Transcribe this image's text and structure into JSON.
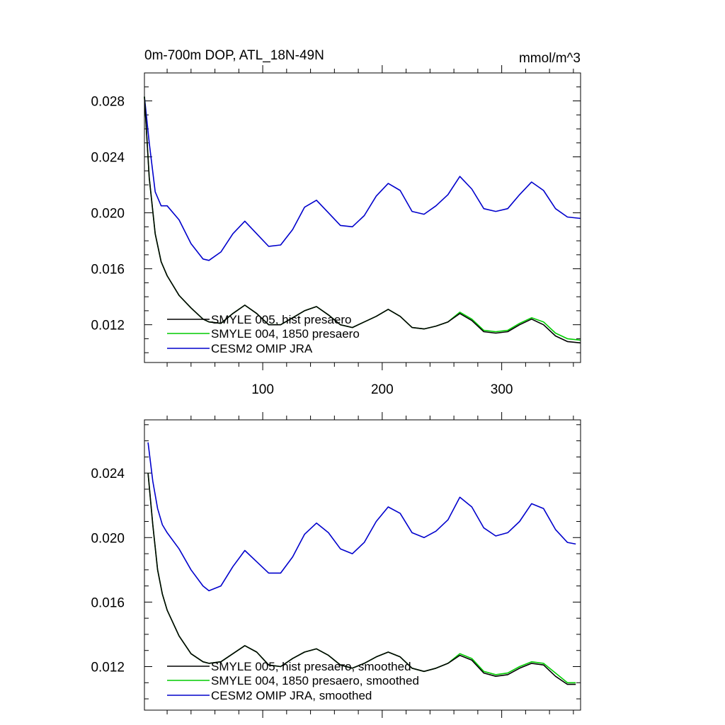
{
  "chart_data": [
    {
      "type": "line",
      "title": "0m-700m DOP, ATL_18N-49N",
      "units": "mmol/m^3",
      "xlabel": "",
      "ylabel": "",
      "xlim": [
        1,
        366
      ],
      "ylim": [
        0.0093,
        0.03
      ],
      "x_ticks": [
        100,
        200,
        300
      ],
      "x_tick_labels": [
        "100",
        "200",
        "300"
      ],
      "y_ticks": [
        0.012,
        0.016,
        0.02,
        0.024,
        0.028
      ],
      "y_tick_labels": [
        "0.012",
        "0.016",
        "0.020",
        "0.024",
        "0.028"
      ],
      "legend_position": "bottom-left",
      "series": [
        {
          "name": "SMYLE 005, hist presaero",
          "color": "#000000",
          "x": [
            1,
            5,
            10,
            15,
            20,
            30,
            40,
            50,
            55,
            65,
            75,
            85,
            95,
            105,
            115,
            125,
            135,
            145,
            155,
            165,
            175,
            185,
            195,
            205,
            215,
            225,
            235,
            245,
            255,
            265,
            275,
            285,
            295,
            305,
            315,
            325,
            335,
            345,
            355,
            366
          ],
          "y": [
            0.0283,
            0.0225,
            0.0185,
            0.0165,
            0.0155,
            0.0141,
            0.0132,
            0.0124,
            0.0122,
            0.0121,
            0.0128,
            0.0134,
            0.0128,
            0.012,
            0.012,
            0.0125,
            0.013,
            0.0133,
            0.0127,
            0.012,
            0.0118,
            0.0122,
            0.0126,
            0.0131,
            0.0126,
            0.0118,
            0.0117,
            0.0119,
            0.0122,
            0.0128,
            0.0123,
            0.0115,
            0.0114,
            0.0115,
            0.012,
            0.0124,
            0.012,
            0.0112,
            0.0108,
            0.0107
          ]
        },
        {
          "name": "SMYLE 004, 1850 presaero",
          "color": "#00cc00",
          "x": [
            1,
            5,
            10,
            15,
            20,
            30,
            40,
            50,
            55,
            65,
            75,
            85,
            95,
            105,
            115,
            125,
            135,
            145,
            155,
            165,
            175,
            185,
            195,
            205,
            215,
            225,
            235,
            245,
            255,
            265,
            275,
            285,
            295,
            305,
            315,
            325,
            335,
            345,
            355,
            366
          ],
          "y": [
            0.0283,
            0.0225,
            0.0185,
            0.0165,
            0.0155,
            0.0141,
            0.0132,
            0.0124,
            0.0122,
            0.0121,
            0.0128,
            0.0134,
            0.0128,
            0.012,
            0.012,
            0.0125,
            0.013,
            0.0133,
            0.0127,
            0.012,
            0.0118,
            0.0122,
            0.0126,
            0.0131,
            0.0126,
            0.0118,
            0.0117,
            0.0119,
            0.0122,
            0.0129,
            0.0124,
            0.0116,
            0.0115,
            0.0116,
            0.0121,
            0.0125,
            0.0122,
            0.0114,
            0.011,
            0.0109
          ]
        },
        {
          "name": "CESM2 OMIP JRA",
          "color": "#0000cc",
          "x": [
            1,
            5,
            10,
            15,
            20,
            30,
            40,
            50,
            55,
            65,
            75,
            85,
            95,
            105,
            115,
            125,
            135,
            145,
            155,
            165,
            175,
            185,
            195,
            205,
            215,
            225,
            235,
            245,
            255,
            265,
            275,
            285,
            295,
            305,
            315,
            325,
            335,
            345,
            355,
            366
          ],
          "y": [
            0.0283,
            0.025,
            0.0215,
            0.0205,
            0.0205,
            0.0195,
            0.0178,
            0.0167,
            0.0166,
            0.0172,
            0.0185,
            0.0194,
            0.0185,
            0.0176,
            0.0177,
            0.0188,
            0.0204,
            0.0209,
            0.02,
            0.0191,
            0.019,
            0.0198,
            0.0212,
            0.0221,
            0.0216,
            0.0201,
            0.0199,
            0.0205,
            0.0213,
            0.0226,
            0.0217,
            0.0203,
            0.0201,
            0.0203,
            0.0213,
            0.0222,
            0.0216,
            0.0203,
            0.0197,
            0.0196
          ]
        }
      ]
    },
    {
      "type": "line",
      "title": "",
      "xlabel": "",
      "ylabel": "",
      "xlim": [
        1,
        366
      ],
      "ylim": [
        0.0093,
        0.0273
      ],
      "x_ticks": [
        100,
        200,
        300
      ],
      "x_tick_labels": [],
      "y_ticks": [
        0.012,
        0.016,
        0.02,
        0.024
      ],
      "y_tick_labels": [
        "0.012",
        "0.016",
        "0.020",
        "0.024"
      ],
      "legend_position": "bottom-left",
      "series": [
        {
          "name": "SMYLE 005, hist presaero, smoothed",
          "color": "#000000",
          "x": [
            4,
            8,
            12,
            16,
            20,
            30,
            40,
            50,
            55,
            65,
            75,
            85,
            95,
            105,
            115,
            125,
            135,
            145,
            155,
            165,
            175,
            185,
            195,
            205,
            215,
            225,
            235,
            245,
            255,
            265,
            275,
            285,
            295,
            305,
            315,
            325,
            335,
            345,
            355,
            362
          ],
          "y": [
            0.024,
            0.0208,
            0.018,
            0.0165,
            0.0155,
            0.0139,
            0.0128,
            0.0123,
            0.0122,
            0.0123,
            0.0128,
            0.0133,
            0.0129,
            0.0121,
            0.012,
            0.0125,
            0.0129,
            0.0131,
            0.0127,
            0.0121,
            0.0119,
            0.0122,
            0.0126,
            0.0129,
            0.0126,
            0.0119,
            0.0117,
            0.0119,
            0.0122,
            0.0127,
            0.0124,
            0.0116,
            0.0114,
            0.0115,
            0.0119,
            0.0122,
            0.0121,
            0.0114,
            0.0109,
            0.0109
          ]
        },
        {
          "name": "SMYLE 004, 1850 presaero, smoothed",
          "color": "#00cc00",
          "x": [
            4,
            8,
            12,
            16,
            20,
            30,
            40,
            50,
            55,
            65,
            75,
            85,
            95,
            105,
            115,
            125,
            135,
            145,
            155,
            165,
            175,
            185,
            195,
            205,
            215,
            225,
            235,
            245,
            255,
            265,
            275,
            285,
            295,
            305,
            315,
            325,
            335,
            345,
            355,
            362
          ],
          "y": [
            0.024,
            0.0208,
            0.018,
            0.0165,
            0.0155,
            0.0139,
            0.0128,
            0.0123,
            0.0122,
            0.0123,
            0.0128,
            0.0133,
            0.0129,
            0.0121,
            0.012,
            0.0125,
            0.0129,
            0.0131,
            0.0127,
            0.0121,
            0.0119,
            0.0122,
            0.0126,
            0.0129,
            0.0126,
            0.0119,
            0.0117,
            0.0119,
            0.0122,
            0.0128,
            0.0125,
            0.0117,
            0.0115,
            0.0116,
            0.012,
            0.0123,
            0.0122,
            0.0116,
            0.011,
            0.011
          ]
        },
        {
          "name": "CESM2 OMIP JRA, smoothed",
          "color": "#0000cc",
          "x": [
            4,
            8,
            12,
            16,
            20,
            30,
            40,
            50,
            55,
            65,
            75,
            85,
            95,
            105,
            115,
            125,
            135,
            145,
            155,
            165,
            175,
            185,
            195,
            205,
            215,
            225,
            235,
            245,
            255,
            265,
            275,
            285,
            295,
            305,
            315,
            325,
            335,
            345,
            355,
            362
          ],
          "y": [
            0.0259,
            0.0235,
            0.0218,
            0.0208,
            0.0203,
            0.0193,
            0.018,
            0.017,
            0.0167,
            0.017,
            0.0182,
            0.0192,
            0.0185,
            0.0178,
            0.0178,
            0.0188,
            0.0202,
            0.0209,
            0.0203,
            0.0193,
            0.019,
            0.0197,
            0.021,
            0.0219,
            0.0215,
            0.0203,
            0.02,
            0.0204,
            0.0211,
            0.0225,
            0.0219,
            0.0206,
            0.0201,
            0.0203,
            0.021,
            0.0221,
            0.0218,
            0.0205,
            0.0197,
            0.0196
          ]
        }
      ]
    }
  ]
}
